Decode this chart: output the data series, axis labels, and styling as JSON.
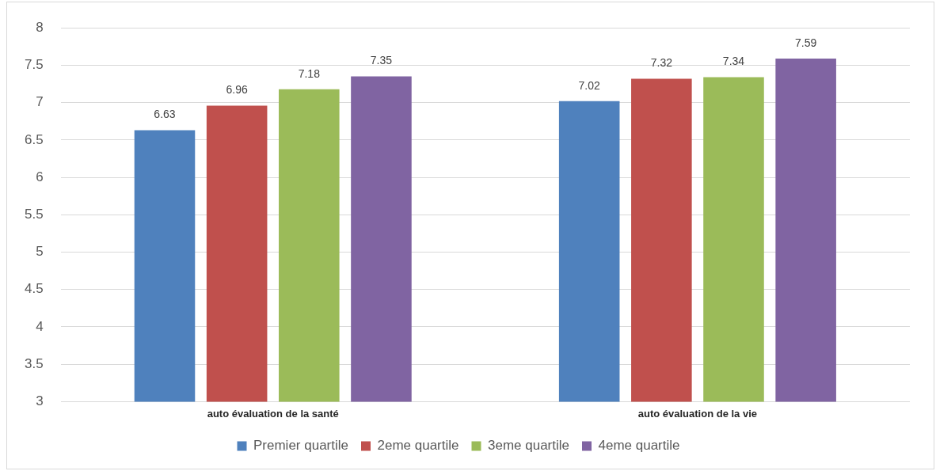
{
  "chart_data": {
    "type": "bar",
    "categories": [
      "auto évaluation de la santé",
      "auto évaluation de la vie"
    ],
    "series": [
      {
        "name": "Premier quartile",
        "color": "#4f81bd",
        "values": [
          6.63,
          7.02
        ]
      },
      {
        "name": "2eme quartile",
        "color": "#c0504d",
        "values": [
          6.96,
          7.32
        ]
      },
      {
        "name": "3eme quartile",
        "color": "#9bbb59",
        "values": [
          7.18,
          7.34
        ]
      },
      {
        "name": "4eme quartile",
        "color": "#8064a2",
        "values": [
          7.35,
          7.59
        ]
      }
    ],
    "ylim": [
      3,
      8
    ],
    "yticks": [
      3,
      3.5,
      4,
      4.5,
      5,
      5.5,
      6,
      6.5,
      7,
      7.5,
      8
    ],
    "grid": "y",
    "legend": "bottom",
    "data_labels": true
  }
}
